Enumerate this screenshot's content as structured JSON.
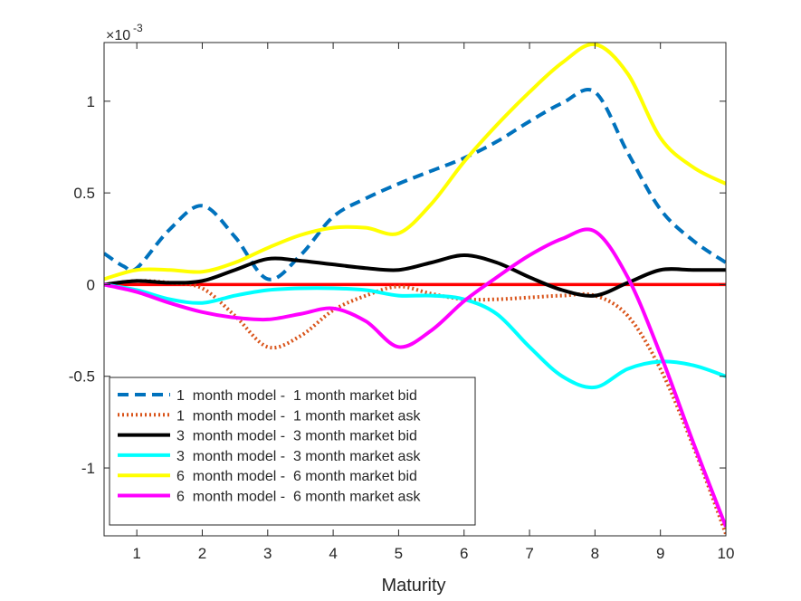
{
  "chart_data": {
    "type": "line",
    "title": "",
    "xlabel": "Maturity",
    "ylabel": "",
    "exponent_base": "×10",
    "exponent_power": "-3",
    "xlim": [
      0.5,
      10
    ],
    "ylim": [
      -1.37,
      1.32
    ],
    "xticks": [
      1,
      2,
      3,
      4,
      5,
      6,
      7,
      8,
      9,
      10
    ],
    "xtick_labels": [
      "1",
      "2",
      "3",
      "4",
      "5",
      "6",
      "7",
      "8",
      "9",
      "10"
    ],
    "yticks": [
      -1,
      -0.5,
      0,
      0.5,
      1
    ],
    "ytick_labels": [
      "-1",
      "-0.5",
      "0",
      "0.5",
      "1"
    ],
    "legend_position": "bottom-left",
    "zero_line": {
      "y": 0,
      "color": "#ff0000"
    },
    "series": [
      {
        "name": "1  month model -  1 month market bid",
        "color": "#0072bd",
        "style": "dashed",
        "x": [
          0.5,
          0.8,
          1,
          1.5,
          2,
          2.5,
          3,
          3.5,
          4,
          4.5,
          5,
          5.5,
          6,
          6.5,
          7,
          7.5,
          8,
          8.5,
          9,
          9.5,
          10
        ],
        "y": [
          0.17,
          0.1,
          0.09,
          0.3,
          0.43,
          0.26,
          0.03,
          0.16,
          0.37,
          0.47,
          0.55,
          0.62,
          0.69,
          0.78,
          0.89,
          0.99,
          1.05,
          0.72,
          0.41,
          0.24,
          0.12
        ]
      },
      {
        "name": "1  month model -  1 month market ask",
        "color": "#d95319",
        "style": "dotted",
        "x": [
          0.5,
          1,
          1.5,
          2,
          2.5,
          3,
          3.5,
          4,
          4.5,
          5,
          5.5,
          6,
          6.5,
          7,
          7.5,
          8,
          8.5,
          9,
          9.5,
          10
        ],
        "y": [
          0,
          0.02,
          0.01,
          -0.02,
          -0.17,
          -0.34,
          -0.28,
          -0.14,
          -0.06,
          -0.01,
          -0.05,
          -0.08,
          -0.08,
          -0.07,
          -0.06,
          -0.06,
          -0.17,
          -0.46,
          -0.88,
          -1.36
        ]
      },
      {
        "name": "3  month model -  3 month market bid",
        "color": "#000000",
        "style": "solid",
        "x": [
          0.5,
          1,
          1.5,
          2,
          2.5,
          3,
          3.5,
          4,
          4.5,
          5,
          5.5,
          6,
          6.5,
          7,
          7.5,
          8,
          8.5,
          9,
          9.5,
          10
        ],
        "y": [
          0,
          0.02,
          0.01,
          0.02,
          0.08,
          0.14,
          0.13,
          0.11,
          0.09,
          0.08,
          0.12,
          0.16,
          0.12,
          0.04,
          -0.03,
          -0.06,
          0.01,
          0.08,
          0.08,
          0.08
        ]
      },
      {
        "name": "3  month model -  3 month market ask",
        "color": "#00ffff",
        "style": "solid",
        "x": [
          0.5,
          1,
          1.5,
          2,
          2.5,
          3,
          3.5,
          4,
          4.5,
          5,
          5.5,
          6,
          6.5,
          7,
          7.5,
          8,
          8.5,
          9,
          9.5,
          10
        ],
        "y": [
          0,
          -0.03,
          -0.08,
          -0.1,
          -0.06,
          -0.03,
          -0.02,
          -0.02,
          -0.03,
          -0.06,
          -0.06,
          -0.08,
          -0.16,
          -0.34,
          -0.5,
          -0.56,
          -0.46,
          -0.42,
          -0.44,
          -0.5
        ]
      },
      {
        "name": "6  month model -  6 month market bid",
        "color": "#ffff00",
        "style": "solid",
        "x": [
          0.5,
          1,
          1.5,
          2,
          2.5,
          3,
          3.5,
          4,
          4.5,
          5,
          5.5,
          6,
          6.5,
          7,
          7.5,
          8,
          8.5,
          9,
          9.5,
          10
        ],
        "y": [
          0.03,
          0.08,
          0.08,
          0.07,
          0.12,
          0.2,
          0.27,
          0.31,
          0.31,
          0.28,
          0.44,
          0.67,
          0.87,
          1.05,
          1.21,
          1.31,
          1.15,
          0.8,
          0.64,
          0.55
        ]
      },
      {
        "name": "6  month model -  6 month market ask",
        "color": "#ff00ff",
        "style": "solid",
        "x": [
          0.5,
          1,
          1.5,
          2,
          2.5,
          3,
          3.5,
          4,
          4.5,
          5,
          5.5,
          6,
          6.5,
          7,
          7.5,
          8,
          8.5,
          9,
          9.5,
          10
        ],
        "y": [
          0,
          -0.04,
          -0.1,
          -0.15,
          -0.18,
          -0.19,
          -0.16,
          -0.13,
          -0.2,
          -0.34,
          -0.25,
          -0.09,
          0.04,
          0.16,
          0.25,
          0.29,
          0.04,
          -0.38,
          -0.86,
          -1.32
        ]
      }
    ]
  }
}
